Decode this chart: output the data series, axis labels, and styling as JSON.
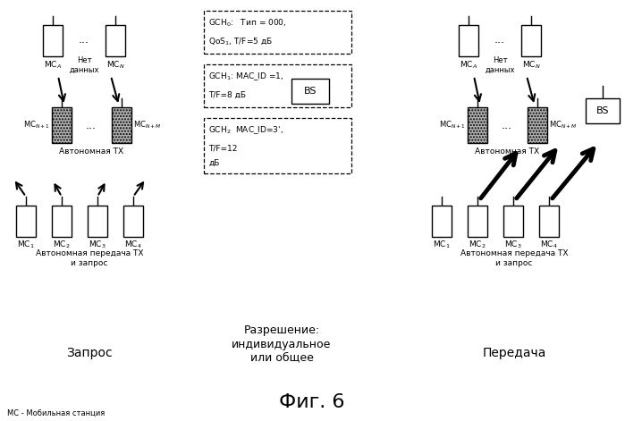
{
  "bg_color": "#ffffff",
  "fig_width": 6.99,
  "fig_height": 4.71,
  "section_labels": {
    "zapros": "Запрос",
    "razreshenie": "Разрешение:\nиндивидуальное\nили общее",
    "peredacha": "Передача"
  },
  "footer_left": "МС - Мобильная станция",
  "fig_label": "Фиг. 6"
}
